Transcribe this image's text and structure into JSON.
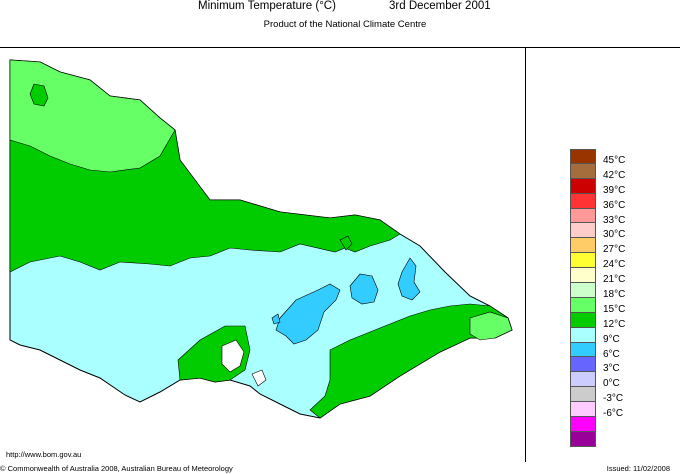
{
  "header": {
    "title": "Minimum Temperature (°C)",
    "date": "3rd December 2001",
    "subtitle": "Product of the National Climate Centre"
  },
  "footer": {
    "website": "http://www.bom.gov.au",
    "copyright": "© Commonwealth of Australia 2008, Australian Bureau of Meteorology",
    "issued": "Issued: 11/02/2008"
  },
  "legend": {
    "items": [
      {
        "label": "45°C",
        "color": "#993300"
      },
      {
        "label": "42°C",
        "color": "#a66d3c"
      },
      {
        "label": "39°C",
        "color": "#cc0000"
      },
      {
        "label": "36°C",
        "color": "#ff3333"
      },
      {
        "label": "33°C",
        "color": "#ff9999"
      },
      {
        "label": "30°C",
        "color": "#ffcccc"
      },
      {
        "label": "27°C",
        "color": "#ffcc66"
      },
      {
        "label": "24°C",
        "color": "#ffff33"
      },
      {
        "label": "21°C",
        "color": "#ffffcc"
      },
      {
        "label": "18°C",
        "color": "#ccffcc"
      },
      {
        "label": "15°C",
        "color": "#66ff66"
      },
      {
        "label": "12°C",
        "color": "#00cc00"
      },
      {
        "label": "9°C",
        "color": "#aaffff"
      },
      {
        "label": "6°C",
        "color": "#33ccff"
      },
      {
        "label": "3°C",
        "color": "#6666ff"
      },
      {
        "label": "0°C",
        "color": "#ccccff"
      },
      {
        "label": "-3°C",
        "color": "#cccccc"
      },
      {
        "label": "-6°C",
        "color": "#ffccff"
      },
      {
        "label": "",
        "color": "#ff00ff"
      },
      {
        "label": "",
        "color": "#990099"
      }
    ]
  },
  "map": {
    "zone_colors": {
      "coast": "#ffffff",
      "mild": "#00cc00",
      "warm": "#66ff66",
      "cool": "#aaffff",
      "cold": "#33ccff"
    }
  }
}
